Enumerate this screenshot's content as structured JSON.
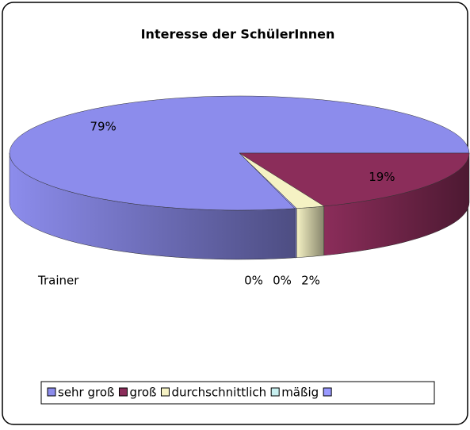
{
  "chart_data": {
    "type": "pie3d",
    "title": "Interesse der SchülerInnen",
    "categories": [
      "sehr groß",
      "groß",
      "durchschnittlich",
      "mäßig",
      null
    ],
    "series": [
      {
        "name": "Trainer",
        "values": [
          79,
          19,
          2,
          0,
          0
        ],
        "value_labels": [
          "79%",
          "19%",
          "2%",
          "0%",
          "0%"
        ],
        "colors": [
          "#8c8cec",
          "#8b2d5a",
          "#f5f2c4",
          "#c8f0f0",
          "#9999ff"
        ]
      }
    ],
    "legend": "bottom"
  }
}
